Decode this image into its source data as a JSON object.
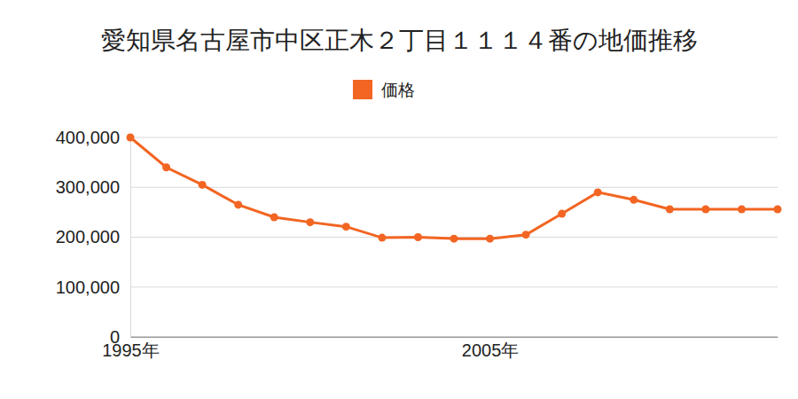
{
  "chart_data": {
    "type": "line",
    "title": "愛知県名古屋市中区正木２丁目１１１４番の地価推移",
    "categories": [
      "1995年",
      null,
      null,
      null,
      null,
      null,
      null,
      null,
      null,
      null,
      "2005年",
      null,
      null,
      null,
      null,
      null,
      null,
      null,
      null
    ],
    "series": [
      {
        "name": "価格",
        "color": "#f26522",
        "marker": "circle",
        "values": [
          400000,
          340000,
          305000,
          265000,
          240000,
          230000,
          221000,
          199000,
          200000,
          197000,
          197000,
          205000,
          247000,
          290000,
          275000,
          256000,
          256000,
          256000,
          256000
        ]
      }
    ],
    "ylim": [
      0,
      400000
    ],
    "yticks": [
      0,
      {
        "value": 100000,
        "label": "100,000"
      },
      {
        "value": 200000,
        "label": "200,000"
      },
      {
        "value": 300000,
        "label": "300,000"
      },
      {
        "value": 400000,
        "label": "400,000"
      }
    ],
    "grid": true,
    "legend": "top"
  }
}
